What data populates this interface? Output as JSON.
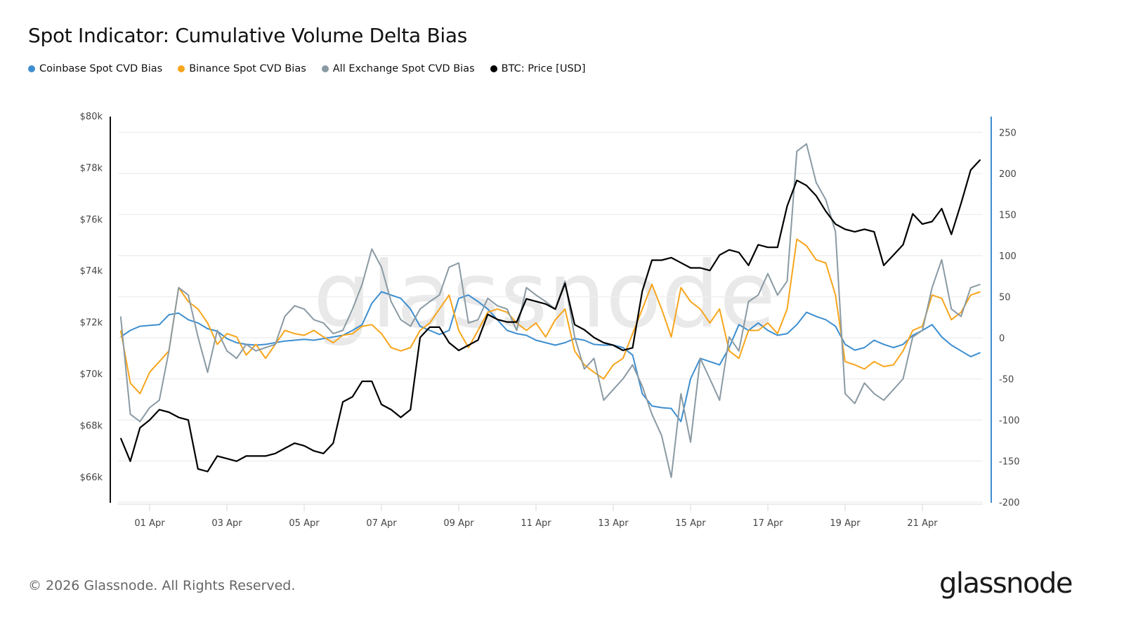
{
  "title": "Spot Indicator: Cumulative Volume Delta Bias",
  "footer": "© 2026 Glassnode. All Rights Reserved.",
  "logo": "glassnode",
  "watermark": "glassnode",
  "chart_data": {
    "type": "line",
    "title": "Spot Indicator: Cumulative Volume Delta Bias",
    "legend_position": "top-left",
    "grid": true,
    "x_tick_labels": [
      "01 Apr",
      "03 Apr",
      "05 Apr",
      "07 Apr",
      "09 Apr",
      "11 Apr",
      "13 Apr",
      "15 Apr",
      "17 Apr",
      "19 Apr",
      "21 Apr"
    ],
    "y_left": {
      "ticks": [
        "$80k",
        "$78k",
        "$76k",
        "$74k",
        "$72k",
        "$70k",
        "$68k",
        "$66k"
      ],
      "range": [
        65.5,
        80
      ],
      "unit": "USD thousands",
      "color": "#000000"
    },
    "y_right": {
      "ticks": [
        "250",
        "200",
        "150",
        "100",
        "50",
        "0",
        "-50",
        "-100",
        "-150",
        "-200"
      ],
      "range": [
        -200,
        250
      ],
      "color": "#3d8ecf"
    },
    "x": [
      "31 Mar 06:00",
      "31 Mar 12:00",
      "31 Mar 18:00",
      "01 Apr 00:00",
      "01 Apr 06:00",
      "01 Apr 12:00",
      "01 Apr 18:00",
      "02 Apr 00:00",
      "02 Apr 06:00",
      "02 Apr 12:00",
      "02 Apr 18:00",
      "03 Apr 00:00",
      "03 Apr 06:00",
      "03 Apr 12:00",
      "03 Apr 18:00",
      "04 Apr 00:00",
      "04 Apr 06:00",
      "04 Apr 12:00",
      "04 Apr 18:00",
      "05 Apr 00:00",
      "05 Apr 06:00",
      "05 Apr 12:00",
      "05 Apr 18:00",
      "06 Apr 00:00",
      "06 Apr 06:00",
      "06 Apr 12:00",
      "06 Apr 18:00",
      "07 Apr 00:00",
      "07 Apr 06:00",
      "07 Apr 12:00",
      "07 Apr 18:00",
      "08 Apr 00:00",
      "08 Apr 06:00",
      "08 Apr 12:00",
      "08 Apr 18:00",
      "09 Apr 00:00",
      "09 Apr 06:00",
      "09 Apr 12:00",
      "09 Apr 18:00",
      "10 Apr 00:00",
      "10 Apr 06:00",
      "10 Apr 12:00",
      "10 Apr 18:00",
      "11 Apr 00:00",
      "11 Apr 06:00",
      "11 Apr 12:00",
      "11 Apr 18:00",
      "12 Apr 00:00",
      "12 Apr 06:00",
      "12 Apr 12:00",
      "12 Apr 18:00",
      "13 Apr 00:00",
      "13 Apr 06:00",
      "13 Apr 12:00",
      "13 Apr 18:00",
      "14 Apr 00:00",
      "14 Apr 06:00",
      "14 Apr 12:00",
      "14 Apr 18:00",
      "15 Apr 00:00",
      "15 Apr 06:00",
      "15 Apr 12:00",
      "15 Apr 18:00",
      "16 Apr 00:00",
      "16 Apr 06:00",
      "16 Apr 12:00",
      "16 Apr 18:00",
      "17 Apr 00:00",
      "17 Apr 06:00",
      "17 Apr 12:00",
      "17 Apr 18:00",
      "18 Apr 00:00",
      "18 Apr 06:00",
      "18 Apr 12:00",
      "18 Apr 18:00",
      "19 Apr 00:00",
      "19 Apr 06:00",
      "19 Apr 12:00",
      "19 Apr 18:00",
      "20 Apr 00:00",
      "20 Apr 06:00",
      "20 Apr 12:00",
      "20 Apr 18:00",
      "21 Apr 00:00",
      "21 Apr 06:00",
      "21 Apr 12:00",
      "21 Apr 18:00",
      "22 Apr 00:00",
      "22 Apr 06:00",
      "22 Apr 12:00"
    ],
    "series": [
      {
        "name": "Coinbase Spot CVD Bias",
        "axis": "right",
        "color": "#3d8ecf",
        "values": [
          1,
          9,
          14,
          15,
          16,
          28,
          30,
          22,
          18,
          11,
          8,
          -1,
          -6,
          -8,
          -9,
          -8,
          -6,
          -4,
          -3,
          -2,
          -3,
          -1,
          1,
          3,
          9,
          16,
          42,
          56,
          52,
          48,
          35,
          14,
          9,
          4,
          9,
          48,
          52,
          44,
          35,
          22,
          9,
          5,
          3,
          -3,
          -6,
          -9,
          -6,
          -1,
          -3,
          -8,
          -9,
          -9,
          -12,
          -21,
          -68,
          -83,
          -85,
          -86,
          -102,
          -50,
          -25,
          -29,
          -33,
          -12,
          16,
          9,
          18,
          9,
          3,
          5,
          16,
          31,
          26,
          22,
          14,
          -8,
          -15,
          -12,
          -3,
          -8,
          -12,
          -8,
          3,
          9,
          16,
          1,
          -9,
          -16,
          -23,
          -18
        ]
      },
      {
        "name": "Binance Spot CVD Bias",
        "axis": "right",
        "color": "#f7a51c",
        "values": [
          9,
          -55,
          -68,
          -42,
          -29,
          -16,
          61,
          44,
          35,
          18,
          -8,
          5,
          1,
          -21,
          -8,
          -25,
          -8,
          9,
          5,
          3,
          9,
          1,
          -6,
          3,
          5,
          14,
          16,
          5,
          -12,
          -16,
          -12,
          9,
          18,
          35,
          52,
          9,
          -12,
          9,
          31,
          35,
          31,
          18,
          9,
          18,
          1,
          22,
          35,
          -16,
          -33,
          -42,
          -50,
          -33,
          -25,
          5,
          35,
          65,
          35,
          1,
          61,
          44,
          35,
          18,
          35,
          -16,
          -25,
          9,
          9,
          18,
          5,
          35,
          120,
          112,
          95,
          91,
          52,
          -29,
          -33,
          -38,
          -29,
          -35,
          -33,
          -16,
          9,
          14,
          52,
          48,
          22,
          31,
          52,
          56
        ]
      },
      {
        "name": "All Exchange Spot CVD Bias",
        "axis": "right",
        "color": "#8a9aa3",
        "values": [
          26,
          -93,
          -102,
          -85,
          -76,
          -16,
          61,
          52,
          1,
          -42,
          9,
          -16,
          -25,
          -8,
          -16,
          -12,
          -8,
          26,
          39,
          35,
          22,
          18,
          5,
          9,
          35,
          65,
          108,
          86,
          44,
          22,
          14,
          35,
          44,
          52,
          86,
          91,
          18,
          22,
          48,
          39,
          35,
          9,
          61,
          52,
          44,
          35,
          69,
          1,
          -38,
          -25,
          -76,
          -63,
          -50,
          -33,
          -59,
          -93,
          -119,
          -170,
          -68,
          -127,
          -25,
          -50,
          -76,
          1,
          -16,
          44,
          52,
          78,
          52,
          69,
          227,
          236,
          189,
          168,
          129,
          -68,
          -80,
          -55,
          -68,
          -76,
          -63,
          -50,
          1,
          9,
          61,
          95,
          35,
          26,
          61,
          65
        ]
      },
      {
        "name": "BTC: Price [USD]",
        "axis": "left",
        "color": "#000000",
        "unit": "USD thousands",
        "values": [
          67.5,
          66.6,
          67.9,
          68.2,
          68.6,
          68.5,
          68.3,
          68.2,
          66.3,
          66.2,
          66.8,
          66.7,
          66.6,
          66.8,
          66.8,
          66.8,
          66.9,
          67.1,
          67.3,
          67.2,
          67.0,
          66.9,
          67.3,
          68.9,
          69.1,
          69.7,
          69.7,
          68.8,
          68.6,
          68.3,
          68.6,
          71.4,
          71.8,
          71.8,
          71.2,
          70.9,
          71.1,
          71.3,
          72.3,
          72.1,
          72.0,
          72.0,
          72.9,
          72.8,
          72.7,
          72.5,
          73.5,
          71.9,
          71.7,
          71.4,
          71.2,
          71.1,
          70.9,
          71.0,
          73.2,
          74.4,
          74.4,
          74.5,
          74.3,
          74.1,
          74.1,
          74.0,
          74.6,
          74.8,
          74.7,
          74.2,
          75.0,
          74.9,
          74.9,
          76.5,
          77.5,
          77.3,
          76.9,
          76.3,
          75.8,
          75.6,
          75.5,
          75.6,
          75.5,
          74.2,
          74.6,
          75.0,
          76.2,
          75.8,
          75.9,
          76.4,
          75.4,
          76.6,
          77.9,
          78.3
        ]
      }
    ]
  }
}
